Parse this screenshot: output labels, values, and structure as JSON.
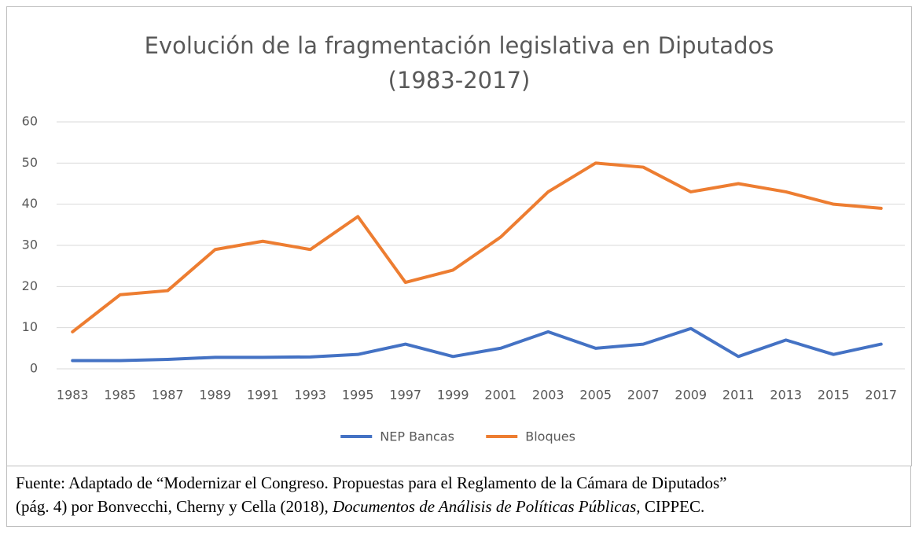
{
  "chart_data": {
    "type": "line",
    "title": [
      "Evolución de la fragmentación legislativa en Diputados",
      "(1983-2017)"
    ],
    "categories": [
      "1983",
      "1985",
      "1987",
      "1989",
      "1991",
      "1993",
      "1995",
      "1997",
      "1999",
      "2001",
      "2003",
      "2005",
      "2007",
      "2009",
      "2011",
      "2013",
      "2015",
      "2017"
    ],
    "series": [
      {
        "name": "NEP Bancas",
        "color": "#4472c4",
        "values": [
          2,
          2,
          2.3,
          2.8,
          2.8,
          2.9,
          3.5,
          6,
          3,
          5,
          9,
          5,
          6,
          9.8,
          3,
          7,
          3.5,
          6
        ]
      },
      {
        "name": "Bloques",
        "color": "#ed7d31",
        "values": [
          9,
          18,
          19,
          29,
          31,
          29,
          37,
          21,
          24,
          32,
          43,
          50,
          49,
          43,
          45,
          43,
          40,
          39
        ]
      }
    ],
    "ylim": [
      0,
      60
    ],
    "yticks": [
      0,
      10,
      20,
      30,
      40,
      50,
      60
    ],
    "grid": true,
    "legend": "bottom"
  },
  "caption": {
    "line1": "Fuente: Adaptado de “Modernizar el Congreso. Propuestas para el Reglamento de la Cámara de Diputados”",
    "line2_start": "(pág. 4) por Bonvecchi, Cherny y Cella (2018),",
    "line2_italic": "Documentos de Análisis de Políticas Públicas,",
    "line2_end": "CIPPEC."
  }
}
